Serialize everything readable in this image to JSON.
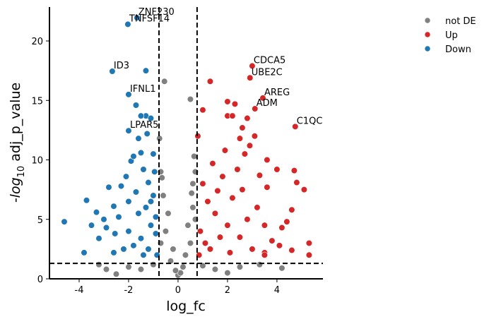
{
  "chart_data": {
    "type": "scatter",
    "x_label": "log_fc",
    "y_label": {
      "prefix": "-log",
      "sub": "10",
      "rest": " adj_p_value"
    },
    "xlim": [
      -5.2,
      5.86
    ],
    "ylim": [
      0,
      22.85
    ],
    "xticks": [
      -4,
      -2,
      0,
      2,
      4
    ],
    "yticks": [
      0,
      5,
      10,
      15,
      20
    ],
    "vlines": [
      -0.77,
      0.77
    ],
    "hline": 1.3,
    "legend": "top-right",
    "series": [
      {
        "name": "not DE",
        "color": "#808080",
        "x": [
          0,
          0.2,
          -0.3,
          0.5,
          -0.5,
          0.6,
          -0.6,
          0.7,
          -0.7,
          0.65,
          -0.75,
          0.5,
          -0.55,
          -1.5,
          -2.0,
          -2.9,
          -3.2,
          1.5,
          2.5,
          3.3,
          4.2,
          0.3,
          -0.2,
          -0.4,
          0.4,
          0.1,
          -0.1,
          0.6,
          -0.65,
          1.0,
          -1.0,
          2.0,
          -2.5,
          0.7,
          -0.7,
          0.55
        ],
        "y": [
          0.3,
          1.0,
          1.5,
          3.0,
          4.0,
          6.0,
          7.0,
          9.0,
          9.0,
          10.3,
          11.8,
          15.1,
          16.6,
          0.8,
          1.0,
          0.8,
          1.2,
          0.8,
          1.0,
          1.2,
          0.9,
          2.0,
          2.5,
          5.5,
          4.5,
          0.5,
          0.7,
          8.0,
          8.5,
          1.1,
          1.2,
          0.5,
          0.4,
          5.0,
          3.0,
          7.2
        ]
      },
      {
        "name": "Up",
        "color": "#d62728",
        "x": [
          0.8,
          1.0,
          1.3,
          2.0,
          2.2,
          2.6,
          2.8,
          3.6,
          4.0,
          4.7,
          5.1,
          4.8,
          3.6,
          5.3,
          5.3,
          4.6,
          4.4,
          4.6,
          4.2,
          3.8,
          3.5,
          3.0,
          2.5,
          2.0,
          1.5,
          1.2,
          1.0,
          0.9,
          1.1,
          0.85,
          1.8,
          2.4,
          2.7,
          2.9,
          2.2,
          1.6,
          3.2,
          3.5,
          2.8,
          1.3,
          2.1,
          1.9,
          2.5,
          3.1,
          1.4,
          2.6,
          3.3,
          1.7,
          4.1,
          2.3,
          2.0,
          3.5,
          3.0,
          2.91,
          3.43,
          3.11,
          4.74
        ],
        "y": [
          12.0,
          14.2,
          16.6,
          13.7,
          13.7,
          12.7,
          13.5,
          10.0,
          9.2,
          9.1,
          7.5,
          8.1,
          7.7,
          3.0,
          2.0,
          2.4,
          4.8,
          5.8,
          4.3,
          3.2,
          2.2,
          2.5,
          3.5,
          4.5,
          5.5,
          6.5,
          8.0,
          4.0,
          3.0,
          2.0,
          8.6,
          9.2,
          10.5,
          11.2,
          6.8,
          7.4,
          6.0,
          4.5,
          5.0,
          2.5,
          2.2,
          10.8,
          11.8,
          12.0,
          9.7,
          7.5,
          8.7,
          3.5,
          2.8,
          14.7,
          14.9,
          2.0,
          17.9,
          16.9,
          15.2,
          14.3,
          12.8
        ]
      },
      {
        "name": "Down",
        "color": "#1f77b4",
        "x": [
          -4.6,
          -3.7,
          -3.3,
          -3.0,
          -3.8,
          -3.2,
          -2.9,
          -2.6,
          -2.3,
          -2.1,
          -1.9,
          -1.8,
          -1.6,
          -1.5,
          -1.4,
          -1.3,
          -1.5,
          -1.1,
          -1.2,
          -1.0,
          -1.3,
          -0.9,
          -1.1,
          -0.9,
          -1.5,
          -1.8,
          -2.2,
          -2.6,
          -3.5,
          -2.8,
          -2.0,
          -1.7,
          -2.4,
          -1.2,
          -0.85,
          -1.0,
          -1.25,
          -1.3,
          -1.7,
          -2.55,
          -2.0,
          -1.6,
          -0.95,
          -1.1,
          -1.4,
          -1.66,
          -2.03,
          -2.66,
          -2.0,
          -2.0
        ],
        "y": [
          4.8,
          6.6,
          5.6,
          5.0,
          2.2,
          3.4,
          4.3,
          6.1,
          7.8,
          8.6,
          9.9,
          10.3,
          11.8,
          10.6,
          9.2,
          13.7,
          13.7,
          13.5,
          8.1,
          7.0,
          6.0,
          5.2,
          4.5,
          3.8,
          3.4,
          2.8,
          2.5,
          2.2,
          4.5,
          7.7,
          6.5,
          7.3,
          5.2,
          2.5,
          2.0,
          10.5,
          12.2,
          17.5,
          14.6,
          3.8,
          4.0,
          5.5,
          9.0,
          6.5,
          2.0,
          21.95,
          21.4,
          17.45,
          15.5,
          12.45
        ]
      }
    ],
    "annotations": [
      {
        "text": "ZNF230",
        "x": -1.66,
        "y": 21.95
      },
      {
        "text": "TNFSF14",
        "x": -2.03,
        "y": 21.4
      },
      {
        "text": "ID3",
        "x": -2.66,
        "y": 17.45
      },
      {
        "text": "IFNL1",
        "x": -2.0,
        "y": 15.5
      },
      {
        "text": "LPAR5",
        "x": -2.0,
        "y": 12.45
      },
      {
        "text": "CDCA5",
        "x": 3.0,
        "y": 17.9
      },
      {
        "text": "UBE2C",
        "x": 2.91,
        "y": 16.9
      },
      {
        "text": "AREG",
        "x": 3.43,
        "y": 15.2
      },
      {
        "text": "ADM",
        "x": 3.11,
        "y": 14.3
      },
      {
        "text": "C1QC",
        "x": 4.74,
        "y": 12.8
      }
    ]
  }
}
